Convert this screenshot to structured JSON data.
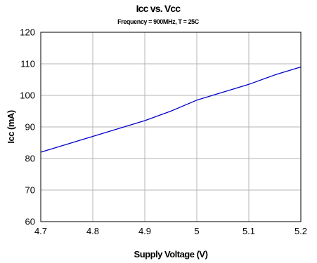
{
  "chart_data": {
    "type": "line",
    "title": "Icc vs. Vcc",
    "subtitle": "Frequency = 900MHz, T = 25C",
    "xlabel": "Supply Voltage (V)",
    "ylabel": "Icc (mA)",
    "xlim": [
      4.7,
      5.2
    ],
    "ylim": [
      60,
      120
    ],
    "xticks": [
      4.7,
      4.8,
      4.9,
      5.0,
      5.1,
      5.2
    ],
    "xtick_labels": [
      "4.7",
      "4.8",
      "4.9",
      "5",
      "5.1",
      "5.2"
    ],
    "yticks": [
      60,
      70,
      80,
      90,
      100,
      110,
      120
    ],
    "ytick_labels": [
      "60",
      "70",
      "80",
      "90",
      "100",
      "110",
      "120"
    ],
    "grid": true,
    "legend": "none",
    "series": [
      {
        "color": "#0000cc",
        "x": [
          4.7,
          4.75,
          4.8,
          4.85,
          4.9,
          4.95,
          5.0,
          5.05,
          5.1,
          5.15,
          5.2
        ],
        "y": [
          82,
          84.5,
          87,
          89.5,
          92,
          95,
          98.5,
          101,
          103.5,
          106.5,
          109
        ]
      }
    ]
  }
}
